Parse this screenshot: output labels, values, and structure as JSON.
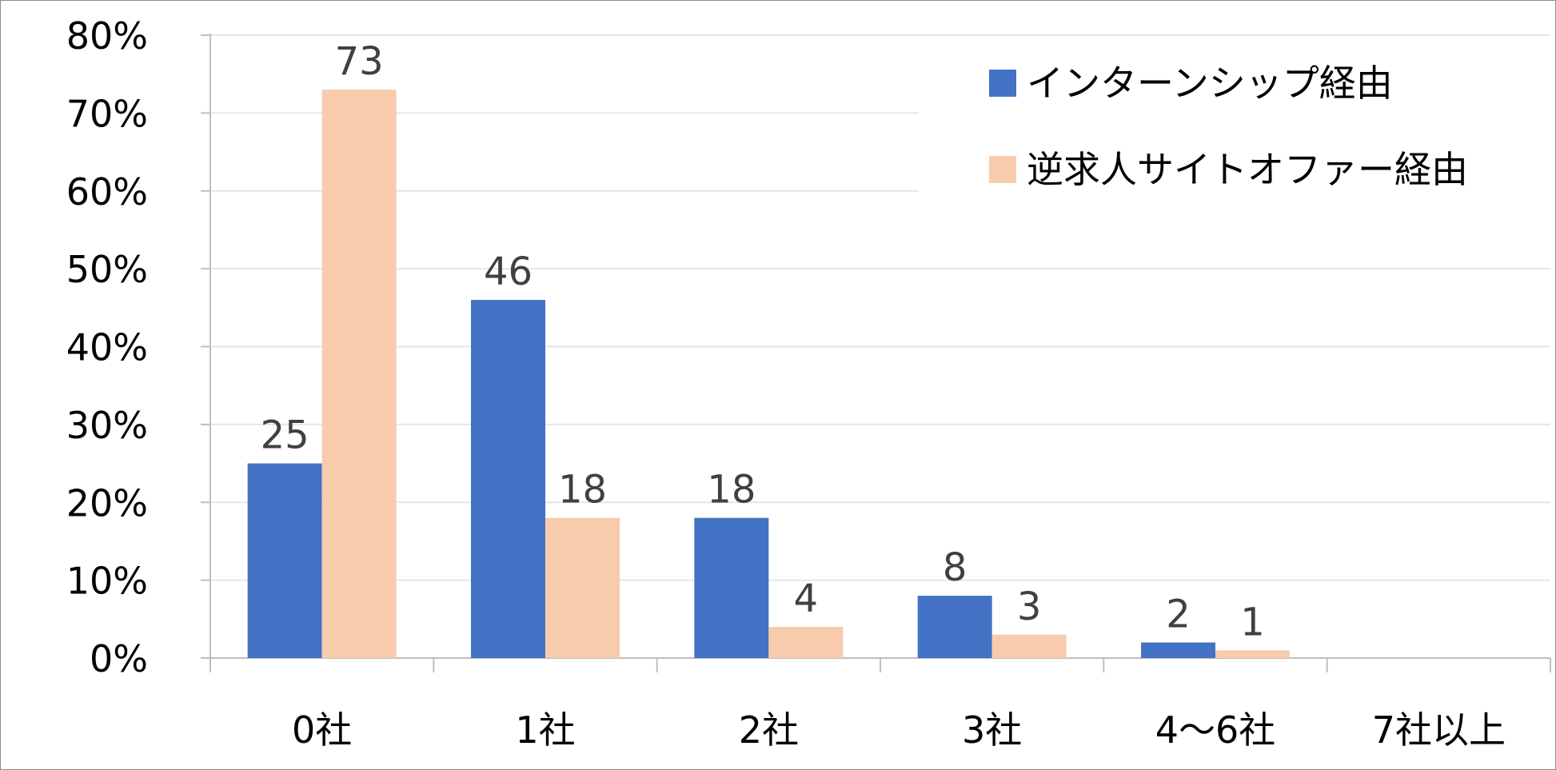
{
  "chart_data": {
    "type": "bar",
    "categories": [
      "0社",
      "1社",
      "2社",
      "3社",
      "4〜6社",
      "7社以上"
    ],
    "series": [
      {
        "name": "インターンシップ経由",
        "values": [
          25,
          46,
          18,
          8,
          2,
          0
        ],
        "labels": [
          "25",
          "46",
          "18",
          "8",
          "2",
          ""
        ],
        "color": "#4472C4"
      },
      {
        "name": "逆求人サイトオファー経由",
        "values": [
          73,
          18,
          4,
          3,
          1,
          0
        ],
        "labels": [
          "73",
          "18",
          "4",
          "3",
          "1",
          ""
        ],
        "color": "#F8CBAD"
      }
    ],
    "yticks": [
      "0%",
      "10%",
      "20%",
      "30%",
      "40%",
      "50%",
      "60%",
      "70%",
      "80%"
    ],
    "ylim": [
      0,
      80
    ],
    "title": "",
    "xlabel": "",
    "ylabel": "",
    "grid": true,
    "legend": "top-right",
    "colors": {
      "gridline": "#E6E6E6",
      "axis": "#BFBFBF",
      "label": "#404040"
    }
  }
}
